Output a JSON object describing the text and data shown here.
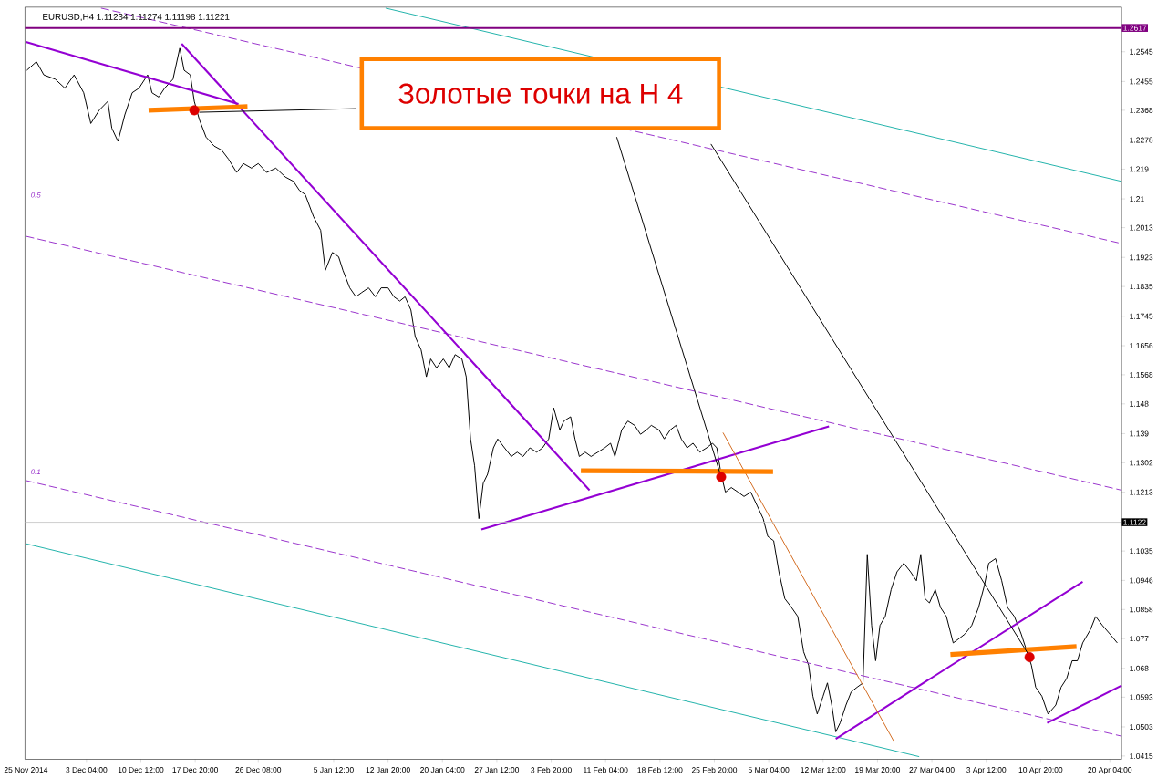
{
  "chart_data": {
    "type": "line",
    "title": "EURUSD,H4  1.11234 1.11274 1.11198 1.11221",
    "xlim": [
      "2014-11-24T21:00",
      "2015-04-21T18:00"
    ],
    "ylim": [
      1.0405,
      1.268
    ],
    "xticks": [
      {
        "value": "2014-11-25T00:00",
        "label": "25 Nov 2014"
      },
      {
        "value": "2014-12-03T04:00",
        "label": "3 Dec 04:00"
      },
      {
        "value": "2014-12-10T12:00",
        "label": "10 Dec 12:00"
      },
      {
        "value": "2014-12-17T20:00",
        "label": "17 Dec 20:00"
      },
      {
        "value": "2014-12-26T08:00",
        "label": "26 Dec 08:00"
      },
      {
        "value": "2015-01-05T12:00",
        "label": "5 Jan 12:00"
      },
      {
        "value": "2015-01-12T20:00",
        "label": "12 Jan 20:00"
      },
      {
        "value": "2015-01-20T04:00",
        "label": "20 Jan 04:00"
      },
      {
        "value": "2015-01-27T12:00",
        "label": "27 Jan 12:00"
      },
      {
        "value": "2015-02-03T20:00",
        "label": "3 Feb 20:00"
      },
      {
        "value": "2015-02-11T04:00",
        "label": "11 Feb 04:00"
      },
      {
        "value": "2015-02-18T12:00",
        "label": "18 Feb 12:00"
      },
      {
        "value": "2015-02-25T20:00",
        "label": "25 Feb 20:00"
      },
      {
        "value": "2015-03-05T04:00",
        "label": "5 Mar 04:00"
      },
      {
        "value": "2015-03-12T12:00",
        "label": "12 Mar 12:00"
      },
      {
        "value": "2015-03-19T20:00",
        "label": "19 Mar 20:00"
      },
      {
        "value": "2015-03-27T04:00",
        "label": "27 Mar 04:00"
      },
      {
        "value": "2015-04-03T12:00",
        "label": "3 Apr 12:00"
      },
      {
        "value": "2015-04-10T20:00",
        "label": "10 Apr 20:00"
      },
      {
        "value": "2015-04-20T04:00",
        "label": "20 Apr 04:00"
      }
    ],
    "yticks": [
      1.2545,
      1.2455,
      1.2368,
      1.2278,
      1.219,
      1.21,
      1.2013,
      1.1923,
      1.1835,
      1.1745,
      1.1656,
      1.1568,
      1.148,
      1.139,
      1.1302,
      1.1213,
      1.1035,
      1.0946,
      1.0858,
      1.077,
      1.068,
      1.0593,
      1.0503,
      1.0415
    ],
    "grid": false,
    "ref_lines": [
      {
        "axis": "y",
        "value": 1.2617,
        "label": "1.2617",
        "color": "#800080"
      },
      {
        "axis": "y",
        "value": 1.1122,
        "label": "1.1122",
        "color": "#c0c0c0"
      }
    ],
    "annotations": [
      "Золотые точки на Н 4",
      "0.5",
      "0.1"
    ],
    "series": [
      {
        "color": "#000000",
        "x": [
          "2014-11-25T03:00",
          "2014-11-26T10:00",
          "2014-11-27T10:00",
          "2014-11-28T23:00",
          "2014-11-30T06:00",
          "2014-12-01T12:00",
          "2014-12-02T19:00",
          "2014-12-03T18:00",
          "2014-12-04T21:00",
          "2014-12-06T01:00",
          "2014-12-06T14:00",
          "2014-12-07T10:00",
          "2014-12-08T08:00",
          "2014-12-09T08:00",
          "2014-12-10T06:00",
          "2014-12-11T10:00",
          "2014-12-12T00:00",
          "2014-12-12T22:00",
          "2014-12-13T17:00",
          "2014-12-14T20:00",
          "2014-12-15T18:00",
          "2014-12-16T08:00",
          "2014-12-17T04:00",
          "2014-12-17T17:00",
          "2014-12-18T09:00",
          "2014-12-19T07:00",
          "2014-12-20T09:00",
          "2014-12-21T10:00",
          "2014-12-22T08:00",
          "2014-12-23T10:00",
          "2014-12-24T08:00",
          "2014-12-25T10:00",
          "2014-12-26T08:00",
          "2014-12-27T11:00",
          "2014-12-28T17:00",
          "2014-12-30T00:00",
          "2014-12-31T02:00",
          "2014-12-31T21:00",
          "2015-01-01T16:00",
          "2015-01-02T19:00",
          "2015-01-03T18:00",
          "2015-01-04T09:00",
          "2015-01-05T08:00",
          "2015-01-06T04:00",
          "2015-01-06T18:00",
          "2015-01-07T16:00",
          "2015-01-08T12:00",
          "2015-01-09T07:00",
          "2015-01-10T05:00",
          "2015-01-11T03:00",
          "2015-01-11T22:00",
          "2015-01-12T20:00",
          "2015-01-13T15:00",
          "2015-01-14T10:00",
          "2015-01-15T03:00",
          "2015-01-15T22:00",
          "2015-01-16T12:00",
          "2015-01-17T07:00",
          "2015-01-18T00:00",
          "2015-01-18T14:00",
          "2015-01-19T09:00",
          "2015-01-20T07:00",
          "2015-01-21T02:00",
          "2015-01-21T21:00",
          "2015-01-22T19:00",
          "2015-01-23T09:00",
          "2015-01-23T23:00",
          "2015-01-24T12:00",
          "2015-01-25T02:00",
          "2015-01-25T16:00",
          "2015-01-26T06:00",
          "2015-01-27T01:00",
          "2015-01-27T15:00",
          "2015-01-28T13:00",
          "2015-01-29T11:00",
          "2015-01-30T06:00",
          "2015-01-31T01:00",
          "2015-01-31T23:00",
          "2015-02-01T21:00",
          "2015-02-02T16:00",
          "2015-02-03T12:00",
          "2015-02-04T04:00",
          "2015-02-05T00:00",
          "2015-02-05T13:00",
          "2015-02-06T11:00",
          "2015-02-07T01:00",
          "2015-02-07T15:00",
          "2015-02-08T10:00",
          "2015-02-09T05:00",
          "2015-02-10T03:00",
          "2015-02-11T01:00",
          "2015-02-11T20:00",
          "2015-02-12T10:00",
          "2015-02-13T08:00",
          "2015-02-14T04:00",
          "2015-02-15T02:00",
          "2015-02-15T21:00",
          "2015-02-16T16:00",
          "2015-02-17T08:00",
          "2015-02-18T09:00",
          "2015-02-19T02:00",
          "2015-02-19T21:00",
          "2015-02-20T16:00",
          "2015-02-21T09:00",
          "2015-02-22T04:00",
          "2015-02-22T23:00",
          "2015-02-23T21:00",
          "2015-02-24T19:00",
          "2015-02-25T14:00",
          "2015-02-26T04:00",
          "2015-02-26T18:00",
          "2015-02-27T08:00",
          "2015-02-28T03:00",
          "2015-03-01T01:00",
          "2015-03-01T20:00",
          "2015-03-02T18:00",
          "2015-03-03T14:00",
          "2015-03-04T10:00",
          "2015-03-05T01:00",
          "2015-03-05T20:00",
          "2015-03-06T13:00",
          "2015-03-07T08:00",
          "2015-03-08T06:00",
          "2015-03-09T02:00",
          "2015-03-09T21:00",
          "2015-03-10T13:00",
          "2015-03-11T03:00",
          "2015-03-11T17:00",
          "2015-03-12T12:00",
          "2015-03-13T02:00",
          "2015-03-13T16:00",
          "2015-03-14T05:00",
          "2015-03-14T19:00",
          "2015-03-15T14:00",
          "2015-03-16T07:00",
          "2015-03-17T02:00",
          "2015-03-17T21:00",
          "2015-03-18T11:00",
          "2015-03-19T01:00",
          "2015-03-19T14:00",
          "2015-03-20T04:00",
          "2015-03-20T21:00",
          "2015-03-21T16:00",
          "2015-03-22T11:00",
          "2015-03-23T09:00",
          "2015-03-24T07:00",
          "2015-03-25T02:00",
          "2015-03-25T16:00",
          "2015-03-26T06:00",
          "2015-03-26T20:00",
          "2015-03-27T15:00",
          "2015-03-28T08:00",
          "2015-03-29T03:00",
          "2015-03-30T01:00",
          "2015-03-30T20:00",
          "2015-03-31T15:00",
          "2015-04-01T13:00",
          "2015-04-02T11:00",
          "2015-04-03T06:00",
          "2015-04-03T20:00",
          "2015-04-04T18:00",
          "2015-04-05T14:00",
          "2015-04-06T09:00",
          "2015-04-07T07:00",
          "2015-04-08T05:00",
          "2015-04-09T00:00",
          "2015-04-09T14:00",
          "2015-04-10T04:00",
          "2015-04-11T00:00",
          "2015-04-11T20:00",
          "2015-04-12T21:00",
          "2015-04-13T14:00",
          "2015-04-14T08:00",
          "2015-04-15T02:00",
          "2015-04-15T19:00",
          "2015-04-16T12:00",
          "2015-04-17T13:00",
          "2015-04-18T06:00",
          "2015-04-19T04:00",
          "2015-04-20T04:00",
          "2015-04-21T04:00"
        ],
        "values": [
          1.2489,
          1.2515,
          1.2475,
          1.2462,
          1.2435,
          1.2475,
          1.2421,
          1.2328,
          1.2368,
          1.2395,
          1.2314,
          1.2274,
          1.2354,
          1.2421,
          1.2435,
          1.2475,
          1.2421,
          1.2408,
          1.2435,
          1.2462,
          1.2556,
          1.2489,
          1.2475,
          1.2395,
          1.2341,
          1.2287,
          1.226,
          1.2247,
          1.222,
          1.218,
          1.2207,
          1.2193,
          1.2207,
          1.218,
          1.2193,
          1.2166,
          1.2153,
          1.2126,
          1.2113,
          1.2046,
          1.2005,
          1.1884,
          1.1938,
          1.1925,
          1.1884,
          1.1831,
          1.1804,
          1.1817,
          1.1831,
          1.1804,
          1.1831,
          1.1831,
          1.1804,
          1.1791,
          1.1804,
          1.1764,
          1.1683,
          1.1643,
          1.1562,
          1.1616,
          1.1589,
          1.1616,
          1.1589,
          1.1629,
          1.1616,
          1.1562,
          1.1374,
          1.1294,
          1.1133,
          1.124,
          1.1267,
          1.1347,
          1.1374,
          1.1347,
          1.1321,
          1.1334,
          1.1321,
          1.1347,
          1.1334,
          1.1347,
          1.1374,
          1.1468,
          1.1401,
          1.1428,
          1.1441,
          1.1374,
          1.1321,
          1.1334,
          1.1321,
          1.1334,
          1.1347,
          1.1361,
          1.1321,
          1.1401,
          1.1428,
          1.1415,
          1.1388,
          1.1401,
          1.1415,
          1.1401,
          1.1374,
          1.1401,
          1.1415,
          1.1374,
          1.1347,
          1.1361,
          1.1334,
          1.1347,
          1.1361,
          1.1347,
          1.1267,
          1.1213,
          1.1227,
          1.1213,
          1.12,
          1.1213,
          1.1173,
          1.1133,
          1.1079,
          1.1066,
          1.0972,
          1.0891,
          1.0864,
          1.0837,
          1.073,
          1.069,
          1.0596,
          1.0542,
          1.0596,
          1.0636,
          1.0569,
          1.0488,
          1.0515,
          1.0569,
          1.0609,
          1.0623,
          1.0636,
          1.1025,
          1.081,
          1.0703,
          1.081,
          1.0837,
          1.0918,
          1.0972,
          1.0998,
          1.0972,
          1.0945,
          1.1025,
          1.0891,
          1.0878,
          1.0918,
          1.0864,
          1.0837,
          1.0757,
          1.077,
          1.0784,
          1.081,
          1.0864,
          1.0931,
          1.0998,
          1.1012,
          1.0945,
          1.0864,
          1.0837,
          1.0784,
          1.073,
          1.069,
          1.0623,
          1.0596,
          1.0542,
          1.0569,
          1.0623,
          1.0649,
          1.0703,
          1.0703,
          1.0757,
          1.0797,
          1.0837,
          1.081,
          1.0784,
          1.0757
        ]
      },
      {
        "color": "#9932cc",
        "line_style": "dashed",
        "x": [
          "2014-12-05T03:00",
          "2015-04-21T18:00"
        ],
        "values": [
          1.2677,
          1.1965
        ]
      },
      {
        "color": "#9932cc",
        "line_style": "dashed",
        "x": [
          "2014-11-25T00:00",
          "2015-04-21T18:00"
        ],
        "values": [
          1.1987,
          1.1219
        ]
      },
      {
        "color": "#9932cc",
        "line_style": "dashed",
        "x": [
          "2014-11-25T00:00",
          "2015-04-21T18:00"
        ],
        "values": [
          1.1248,
          1.0475
        ]
      },
      {
        "color": "#20b2aa",
        "x": [
          "2015-01-12T12:00",
          "2015-04-21T18:00"
        ],
        "values": [
          1.2677,
          1.2153
        ]
      },
      {
        "color": "#20b2aa",
        "x": [
          "2014-11-25T00:00",
          "2015-03-25T11:00"
        ],
        "values": [
          1.1057,
          1.0413
        ]
      },
      {
        "color": "#9400d3",
        "x": [
          "2014-11-25T00:00",
          "2014-12-23T16:00"
        ],
        "values": [
          1.2575,
          1.2387
        ]
      },
      {
        "color": "#9400d3",
        "x": [
          "2014-12-16T00:00",
          "2015-02-09T00:00"
        ],
        "values": [
          1.2569,
          1.1219
        ]
      },
      {
        "color": "#9400d3",
        "x": [
          "2015-01-25T10:00",
          "2015-03-13T07:00"
        ],
        "values": [
          1.11,
          1.1412
        ]
      },
      {
        "color": "#9400d3",
        "x": [
          "2015-03-14T05:00",
          "2015-04-16T12:00"
        ],
        "values": [
          1.0467,
          1.0942
        ]
      },
      {
        "color": "#9400d3",
        "x": [
          "2015-04-11T17:00",
          "2015-04-21T18:00"
        ],
        "values": [
          1.0515,
          1.0628
        ]
      },
      {
        "color": "#d2691e",
        "x": [
          "2015-02-27T00:00",
          "2015-03-22T00:00"
        ],
        "values": [
          1.1393,
          1.0461
        ]
      },
      {
        "color": "#ff8000",
        "x": [
          "2014-12-11T13:00",
          "2014-12-24T21:00"
        ],
        "values": [
          1.2368,
          1.2379
        ]
      },
      {
        "color": "#ff8000",
        "x": [
          "2015-02-07T20:00",
          "2015-03-05T18:00"
        ],
        "values": [
          1.1278,
          1.1275
        ]
      },
      {
        "color": "#ff8000",
        "x": [
          "2015-03-29T16:00",
          "2015-04-15T16:00"
        ],
        "values": [
          1.0722,
          1.0746
        ]
      },
      {
        "color": "#000000",
        "x": [
          "2015-01-08T12:00",
          "2014-12-18T09:00"
        ],
        "values": [
          1.2373,
          1.2362
        ]
      },
      {
        "color": "#000000",
        "x": [
          "2015-02-12T16:00",
          "2015-02-26T18:00"
        ],
        "values": [
          1.2287,
          1.1259
        ]
      },
      {
        "color": "#000000",
        "x": [
          "2015-02-25T09:00",
          "2015-04-09T08:00"
        ],
        "values": [
          1.2266,
          1.0717
        ]
      },
      {
        "type": "scatter",
        "color": "#dd0000",
        "x": [
          "2014-12-17T17:00",
          "2015-02-26T18:00",
          "2015-04-09T08:00"
        ],
        "values": [
          1.2368,
          1.1259,
          1.0714
        ]
      }
    ]
  }
}
